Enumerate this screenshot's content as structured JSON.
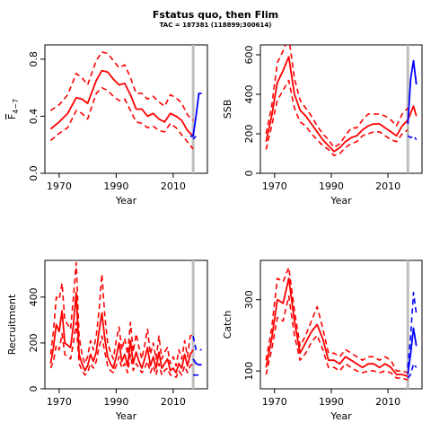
{
  "figure": {
    "title": "Fstatus quo, then Flim",
    "subtitle": "TAC = 187381 (118899;300614)"
  },
  "colors": {
    "historical": "#ff0000",
    "projection": "#0000ff",
    "divider": "#bebebe",
    "axis": "#000000"
  },
  "chart_data": [
    {
      "type": "line",
      "id": "fbar",
      "ylabel_main": "F",
      "ylabel_sub": "4−7",
      "xlabel": "Year",
      "xlim": [
        1965,
        2022
      ],
      "ylim": [
        0,
        0.9
      ],
      "xticks": [
        1970,
        1990,
        2010
      ],
      "yticks": [
        0.0,
        0.4,
        0.8
      ],
      "ytick_labels": [
        "0.0",
        "0.4",
        "0.8"
      ],
      "divider_x": 2017,
      "series": [
        {
          "role": "median",
          "x": [
            1967,
            1970,
            1973,
            1976,
            1978,
            1980,
            1983,
            1985,
            1987,
            1989,
            1991,
            1993,
            1995,
            1997,
            1999,
            2001,
            2003,
            2005,
            2007,
            2009,
            2011,
            2013,
            2015,
            2017
          ],
          "y": [
            0.31,
            0.36,
            0.42,
            0.53,
            0.52,
            0.49,
            0.65,
            0.72,
            0.71,
            0.66,
            0.62,
            0.63,
            0.55,
            0.45,
            0.45,
            0.4,
            0.42,
            0.38,
            0.36,
            0.42,
            0.4,
            0.37,
            0.3,
            0.26
          ]
        },
        {
          "role": "upper",
          "x": [
            1967,
            1970,
            1973,
            1976,
            1978,
            1980,
            1983,
            1985,
            1987,
            1989,
            1991,
            1993,
            1995,
            1997,
            1999,
            2001,
            2003,
            2005,
            2007,
            2009,
            2011,
            2013,
            2015,
            2017
          ],
          "y": [
            0.44,
            0.48,
            0.55,
            0.7,
            0.67,
            0.62,
            0.79,
            0.85,
            0.84,
            0.79,
            0.74,
            0.76,
            0.67,
            0.56,
            0.56,
            0.52,
            0.54,
            0.5,
            0.47,
            0.55,
            0.53,
            0.49,
            0.41,
            0.37
          ]
        },
        {
          "role": "lower",
          "x": [
            1967,
            1970,
            1973,
            1976,
            1978,
            1980,
            1983,
            1985,
            1987,
            1989,
            1991,
            1993,
            1995,
            1997,
            1999,
            2001,
            2003,
            2005,
            2007,
            2009,
            2011,
            2013,
            2015,
            2017
          ],
          "y": [
            0.23,
            0.28,
            0.32,
            0.44,
            0.42,
            0.38,
            0.56,
            0.6,
            0.58,
            0.54,
            0.51,
            0.52,
            0.44,
            0.36,
            0.35,
            0.32,
            0.33,
            0.3,
            0.29,
            0.35,
            0.32,
            0.27,
            0.22,
            0.17
          ]
        },
        {
          "role": "proj",
          "x": [
            2016,
            2017,
            2018,
            2019,
            2020
          ],
          "y": [
            0.26,
            0.26,
            0.4,
            0.56,
            0.56
          ]
        },
        {
          "role": "proj-lower",
          "x": [
            2017,
            2018
          ],
          "y": [
            0.24,
            0.26
          ]
        }
      ]
    },
    {
      "type": "line",
      "id": "ssb",
      "ylabel_main": "SSB",
      "ylabel_sub": "",
      "xlabel": "Year",
      "xlim": [
        1965,
        2022
      ],
      "ylim": [
        0,
        650
      ],
      "xticks": [
        1970,
        1990,
        2010
      ],
      "yticks": [
        0,
        200,
        400,
        600
      ],
      "ytick_labels": [
        "0",
        "200",
        "400",
        "600"
      ],
      "divider_x": 2017,
      "series": [
        {
          "role": "median",
          "x": [
            1967,
            1969,
            1971,
            1973,
            1975,
            1977,
            1979,
            1981,
            1983,
            1985,
            1987,
            1989,
            1991,
            1993,
            1995,
            1997,
            1999,
            2001,
            2003,
            2005,
            2007,
            2009,
            2011,
            2013,
            2015,
            2017,
            2019,
            2020
          ],
          "y": [
            160,
            290,
            460,
            520,
            590,
            400,
            320,
            290,
            250,
            210,
            170,
            140,
            110,
            130,
            160,
            180,
            190,
            220,
            240,
            250,
            250,
            230,
            210,
            190,
            240,
            270,
            340,
            290
          ]
        },
        {
          "role": "upper",
          "x": [
            1967,
            1969,
            1971,
            1973,
            1975,
            1977,
            1979,
            1981,
            1983,
            1985,
            1987,
            1989,
            1991,
            1993,
            1995,
            1997,
            1999,
            2001,
            2003,
            2005,
            2007,
            2009,
            2011,
            2013,
            2015,
            2017
          ],
          "y": [
            200,
            340,
            560,
            620,
            690,
            480,
            370,
            330,
            290,
            240,
            200,
            170,
            130,
            150,
            190,
            230,
            230,
            270,
            300,
            300,
            300,
            290,
            270,
            240,
            300,
            330
          ]
        },
        {
          "role": "lower",
          "x": [
            1967,
            1969,
            1971,
            1973,
            1975,
            1977,
            1979,
            1981,
            1983,
            1985,
            1987,
            1989,
            1991,
            1993,
            1995,
            1997,
            1999,
            2001,
            2003,
            2005,
            2007,
            2009,
            2011,
            2013,
            2015,
            2017
          ],
          "y": [
            120,
            240,
            370,
            420,
            470,
            330,
            260,
            240,
            200,
            170,
            140,
            120,
            90,
            100,
            130,
            150,
            160,
            190,
            200,
            210,
            210,
            190,
            170,
            160,
            200,
            220
          ]
        },
        {
          "role": "proj",
          "x": [
            2017,
            2018,
            2019,
            2020
          ],
          "y": [
            250,
            480,
            570,
            450
          ]
        },
        {
          "role": "proj-lower",
          "x": [
            2017,
            2018,
            2019,
            2020
          ],
          "y": [
            190,
            180,
            190,
            170
          ]
        }
      ]
    },
    {
      "type": "line",
      "id": "recruitment",
      "ylabel_main": "Recruitment",
      "ylabel_sub": "",
      "xlabel": "Year",
      "xlim": [
        1965,
        2022
      ],
      "ylim": [
        0,
        560
      ],
      "xticks": [
        1970,
        1990,
        2010
      ],
      "yticks": [
        0,
        200,
        400
      ],
      "ytick_labels": [
        "0",
        "200",
        "400"
      ],
      "divider_x": 2017,
      "series": [
        {
          "role": "median",
          "x": [
            1967,
            1968,
            1969,
            1970,
            1971,
            1972,
            1973,
            1974,
            1975,
            1976,
            1977,
            1978,
            1979,
            1980,
            1981,
            1982,
            1983,
            1984,
            1985,
            1986,
            1987,
            1988,
            1989,
            1990,
            1991,
            1992,
            1993,
            1994,
            1995,
            1996,
            1997,
            1998,
            1999,
            2000,
            2001,
            2002,
            2003,
            2004,
            2005,
            2006,
            2007,
            2008,
            2009,
            2010,
            2011,
            2012,
            2013,
            2014,
            2015,
            2016,
            2017
          ],
          "y": [
            110,
            180,
            280,
            250,
            340,
            200,
            190,
            180,
            280,
            420,
            150,
            110,
            80,
            100,
            150,
            120,
            160,
            250,
            330,
            220,
            140,
            110,
            90,
            140,
            200,
            120,
            150,
            100,
            210,
            110,
            160,
            120,
            90,
            130,
            180,
            100,
            140,
            90,
            160,
            90,
            110,
            130,
            80,
            90,
            70,
            110,
            90,
            150,
            100,
            150,
            170
          ]
        },
        {
          "role": "upper",
          "x": [
            1967,
            1968,
            1969,
            1970,
            1971,
            1972,
            1973,
            1974,
            1975,
            1976,
            1977,
            1978,
            1979,
            1980,
            1981,
            1982,
            1983,
            1984,
            1985,
            1986,
            1987,
            1988,
            1989,
            1990,
            1991,
            1992,
            1993,
            1994,
            1995,
            1996,
            1997,
            1998,
            1999,
            2000,
            2001,
            2002,
            2003,
            2004,
            2005,
            2006,
            2007,
            2008,
            2009,
            2010,
            2011,
            2012,
            2013,
            2014,
            2015,
            2016,
            2017
          ],
          "y": [
            150,
            250,
            400,
            390,
            460,
            300,
            280,
            260,
            400,
            550,
            230,
            150,
            110,
            140,
            210,
            170,
            230,
            340,
            500,
            320,
            200,
            160,
            130,
            210,
            270,
            170,
            220,
            150,
            290,
            160,
            240,
            180,
            130,
            190,
            260,
            150,
            200,
            130,
            230,
            130,
            160,
            180,
            110,
            140,
            100,
            170,
            130,
            210,
            140,
            230,
            240
          ]
        },
        {
          "role": "lower",
          "x": [
            1967,
            1968,
            1969,
            1970,
            1971,
            1972,
            1973,
            1974,
            1975,
            1976,
            1977,
            1978,
            1979,
            1980,
            1981,
            1982,
            1983,
            1984,
            1985,
            1986,
            1987,
            1988,
            1989,
            1990,
            1991,
            1992,
            1993,
            1994,
            1995,
            1996,
            1997,
            1998,
            1999,
            2000,
            2001,
            2002,
            2003,
            2004,
            2005,
            2006,
            2007,
            2008,
            2009,
            2010,
            2011,
            2012,
            2013,
            2014,
            2015,
            2016,
            2017
          ],
          "y": [
            90,
            120,
            190,
            170,
            240,
            150,
            140,
            130,
            200,
            290,
            110,
            80,
            60,
            70,
            110,
            90,
            120,
            180,
            230,
            160,
            100,
            80,
            70,
            100,
            140,
            90,
            110,
            70,
            150,
            80,
            110,
            90,
            70,
            90,
            120,
            70,
            100,
            60,
            110,
            60,
            80,
            90,
            60,
            60,
            50,
            80,
            60,
            100,
            70,
            100,
            110
          ]
        },
        {
          "role": "proj",
          "x": [
            2017,
            2018,
            2019,
            2020
          ],
          "y": [
            130,
            110,
            105,
            105
          ]
        },
        {
          "role": "proj-upper",
          "x": [
            2017,
            2018,
            2019,
            2020
          ],
          "y": [
            230,
            170,
            170,
            170
          ]
        },
        {
          "role": "proj-lower",
          "x": [
            2017,
            2018,
            2019,
            2020
          ],
          "y": [
            60,
            60,
            60,
            60
          ]
        }
      ]
    },
    {
      "type": "line",
      "id": "catch",
      "ylabel_main": "Catch",
      "ylabel_sub": "",
      "xlabel": "Year",
      "xlim": [
        1965,
        2022
      ],
      "ylim": [
        50,
        410
      ],
      "xticks": [
        1970,
        1990,
        2010
      ],
      "yticks": [
        100,
        300
      ],
      "ytick_labels": [
        "100",
        "300"
      ],
      "divider_x": 2017,
      "series": [
        {
          "role": "median",
          "x": [
            1967,
            1969,
            1971,
            1973,
            1975,
            1977,
            1979,
            1981,
            1983,
            1985,
            1987,
            1989,
            1991,
            1993,
            1995,
            1997,
            1999,
            2001,
            2003,
            2005,
            2007,
            2009,
            2011,
            2013,
            2015,
            2017
          ],
          "y": [
            110,
            190,
            300,
            290,
            360,
            240,
            150,
            180,
            210,
            230,
            190,
            130,
            130,
            120,
            140,
            130,
            120,
            110,
            120,
            120,
            110,
            120,
            110,
            90,
            90,
            85
          ]
        },
        {
          "role": "upper",
          "x": [
            1967,
            1969,
            1971,
            1973,
            1975,
            1977,
            1979,
            1981,
            1983,
            1985,
            1987,
            1989,
            1991,
            1993,
            1995,
            1997,
            1999,
            2001,
            2003,
            2005,
            2007,
            2009,
            2011,
            2013,
            2015,
            2017
          ],
          "y": [
            130,
            220,
            360,
            350,
            390,
            270,
            170,
            200,
            240,
            280,
            220,
            150,
            150,
            140,
            160,
            150,
            140,
            130,
            140,
            140,
            130,
            140,
            130,
            100,
            100,
            95
          ]
        },
        {
          "role": "lower",
          "x": [
            1967,
            1969,
            1971,
            1973,
            1975,
            1977,
            1979,
            1981,
            1983,
            1985,
            1987,
            1989,
            1991,
            1993,
            1995,
            1997,
            1999,
            2001,
            2003,
            2005,
            2007,
            2009,
            2011,
            2013,
            2015,
            2017
          ],
          "y": [
            90,
            160,
            250,
            240,
            310,
            200,
            130,
            150,
            180,
            200,
            160,
            110,
            110,
            100,
            120,
            110,
            100,
            95,
            100,
            100,
            95,
            100,
            95,
            80,
            80,
            75
          ]
        },
        {
          "role": "proj",
          "x": [
            2017,
            2018,
            2019,
            2020
          ],
          "y": [
            90,
            150,
            220,
            170
          ]
        },
        {
          "role": "proj-upper",
          "x": [
            2017,
            2018,
            2019,
            2020
          ],
          "y": [
            110,
            200,
            320,
            260
          ]
        },
        {
          "role": "proj-lower",
          "x": [
            2017,
            2018,
            2019,
            2020
          ],
          "y": [
            80,
            90,
            120,
            110
          ]
        }
      ]
    }
  ]
}
